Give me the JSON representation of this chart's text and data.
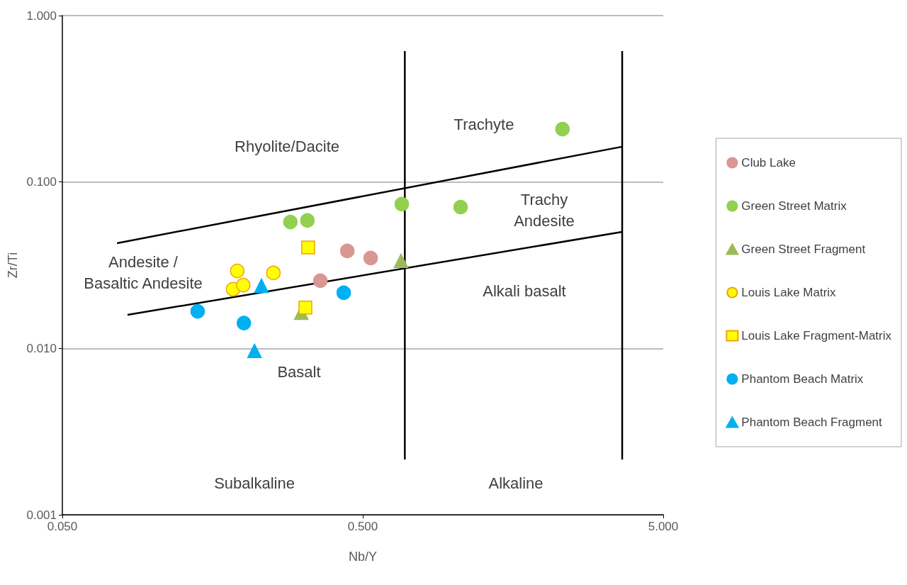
{
  "chart_data": {
    "type": "scatter",
    "xlabel": "Nb/Y",
    "ylabel": "Zr/Ti",
    "log": "xy",
    "grid": "y",
    "legend": "right",
    "xlim": [
      0.05,
      5
    ],
    "xticks": [
      {
        "value": 0.05,
        "label": "0.050"
      },
      {
        "value": 0.5,
        "label": "0.500"
      },
      {
        "value": 5,
        "label": "5.000"
      }
    ],
    "ylim": [
      0.001,
      1
    ],
    "yticks": [
      {
        "value": 0.001,
        "label": "0.001"
      },
      {
        "value": 0.01,
        "label": "0.010"
      },
      {
        "value": 0.1,
        "label": "0.100"
      },
      {
        "value": 1,
        "label": "1.000"
      }
    ],
    "series": [
      {
        "name": "Club Lake",
        "color": "#d99694",
        "marker": "circle",
        "x": [
          0.361,
          0.444,
          0.531
        ],
        "values": [
          0.0255,
          0.0385,
          0.0349
        ]
      },
      {
        "name": "Green Street Matrix",
        "color": "#92d050",
        "marker": "circle",
        "x": [
          0.287,
          0.327,
          0.674,
          1.058,
          2.31
        ],
        "values": [
          0.0575,
          0.0587,
          0.0736,
          0.0707,
          0.208
        ]
      },
      {
        "name": "Green Street Fragment",
        "color": "#9bbb59",
        "marker": "triangle",
        "x": [
          0.67,
          0.312
        ],
        "values": [
          0.0336,
          0.0164
        ]
      },
      {
        "name": "Louis Lake Matrix",
        "color": "#ffff00",
        "marker": "circle",
        "x": [
          0.191,
          0.185,
          0.2,
          0.252
        ],
        "values": [
          0.0292,
          0.0227,
          0.024,
          0.0284
        ]
      },
      {
        "name": "Louis Lake Fragment-Matrix",
        "color": "#ffff00",
        "marker": "square",
        "x": [
          0.329,
          0.322
        ],
        "values": [
          0.0404,
          0.0176
        ]
      },
      {
        "name": "Phantom Beach Matrix",
        "color": "#00b0f0",
        "marker": "circle",
        "x": [
          0.141,
          0.201,
          0.432
        ],
        "values": [
          0.0167,
          0.0142,
          0.0216
        ]
      },
      {
        "name": "Phantom Beach Fragment",
        "color": "#00b0f0",
        "marker": "triangle",
        "x": [
          0.23,
          0.218
        ],
        "values": [
          0.0238,
          0.00966
        ]
      },
      {
        "type": "line",
        "color": "#000000",
        "marker": "none",
        "x": [
          0.076,
          3.65
        ],
        "values": [
          0.0429,
          0.163
        ]
      },
      {
        "type": "line",
        "color": "#000000",
        "marker": "none",
        "x": [
          0.0824,
          3.65
        ],
        "values": [
          0.0159,
          0.0502
        ]
      },
      {
        "type": "line",
        "color": "#000000",
        "marker": "none",
        "x": [
          0.69,
          0.69
        ],
        "values": [
          0.612,
          0.00215
        ]
      },
      {
        "type": "line",
        "color": "#000000",
        "marker": "none",
        "x": [
          3.65,
          3.65
        ],
        "values": [
          0.612,
          0.00215
        ]
      }
    ],
    "annotations": [
      "Rhyolite/Dacite",
      "Trachyte",
      "Trachy\nAndesite",
      "Andesite /\nBasaltic Andesite",
      "Alkali basalt",
      "Basalt",
      "Subalkaline",
      "Alkaline"
    ]
  }
}
